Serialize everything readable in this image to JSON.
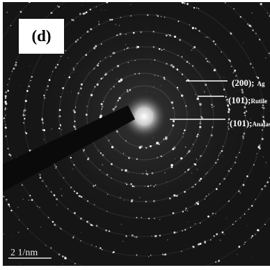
{
  "panel_label": "(d)",
  "annotations": [
    {
      "plane": "(200);",
      "phase": "Ag"
    },
    {
      "plane": "(101);",
      "phase": "Rutile"
    },
    {
      "plane": "(101);",
      "phase": "Anatase"
    }
  ],
  "scale_bar": {
    "label": "2 1/nm"
  },
  "colors": {
    "background": "#151515",
    "spots": "#ffffff",
    "beam_stop": "#0a0a0a"
  }
}
